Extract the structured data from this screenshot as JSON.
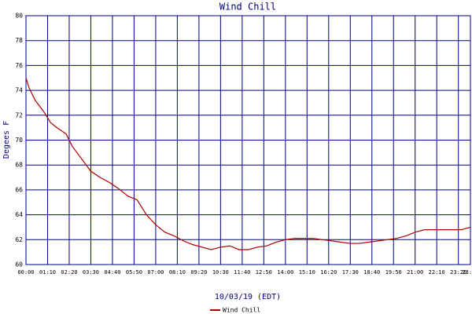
{
  "chart_data": {
    "type": "line",
    "title": "Wind Chill",
    "xlabel": "10/03/19 (EDT)",
    "ylabel": "Degees F",
    "x": [
      0,
      10,
      30,
      60,
      80,
      100,
      130,
      150,
      180,
      210,
      240,
      270,
      300,
      330,
      360,
      390,
      420,
      450,
      480,
      510,
      540,
      570,
      600,
      630,
      660,
      690,
      720,
      750,
      780,
      810,
      840,
      870,
      900,
      930,
      960,
      990,
      1020,
      1050,
      1080,
      1110,
      1140,
      1170,
      1200,
      1230,
      1260,
      1290,
      1320,
      1350,
      1380,
      1410,
      1439
    ],
    "series": [
      {
        "name": "Wind Chill",
        "color": "#aa0000",
        "values": [
          75,
          74.2,
          73.2,
          72.2,
          71.4,
          71.0,
          70.5,
          69.5,
          68.5,
          67.5,
          67.0,
          66.6,
          66.1,
          65.5,
          65.2,
          64.0,
          63.2,
          62.6,
          62.3,
          61.9,
          61.6,
          61.4,
          61.2,
          61.4,
          61.5,
          61.2,
          61.2,
          61.4,
          61.5,
          61.8,
          62.0,
          62.1,
          62.1,
          62.1,
          62.0,
          61.9,
          61.8,
          61.7,
          61.7,
          61.8,
          61.9,
          62.0,
          62.1,
          62.3,
          62.6,
          62.8,
          62.8,
          62.8,
          62.8,
          62.8,
          63.0
        ]
      }
    ],
    "xlim": [
      0,
      1439
    ],
    "xticks": [
      {
        "value": 0,
        "label": "00:00"
      },
      {
        "value": 70,
        "label": "01:10"
      },
      {
        "value": 140,
        "label": "02:20"
      },
      {
        "value": 210,
        "label": "03:30"
      },
      {
        "value": 280,
        "label": "04:40"
      },
      {
        "value": 350,
        "label": "05:50"
      },
      {
        "value": 420,
        "label": "07:00"
      },
      {
        "value": 490,
        "label": "08:10"
      },
      {
        "value": 560,
        "label": "09:20"
      },
      {
        "value": 630,
        "label": "10:30"
      },
      {
        "value": 700,
        "label": "11:40"
      },
      {
        "value": 770,
        "label": "12:50"
      },
      {
        "value": 840,
        "label": "14:00"
      },
      {
        "value": 910,
        "label": "15:10"
      },
      {
        "value": 980,
        "label": "16:20"
      },
      {
        "value": 1050,
        "label": "17:30"
      },
      {
        "value": 1120,
        "label": "18:40"
      },
      {
        "value": 1190,
        "label": "19:50"
      },
      {
        "value": 1260,
        "label": "21:00"
      },
      {
        "value": 1330,
        "label": "22:10"
      },
      {
        "value": 1400,
        "label": "23:20"
      },
      {
        "value": 1439,
        "label": "23:59"
      }
    ],
    "ylim": [
      60,
      80
    ],
    "yticks": [
      60,
      62,
      64,
      66,
      68,
      70,
      72,
      74,
      76,
      78,
      80
    ],
    "grid": true
  }
}
